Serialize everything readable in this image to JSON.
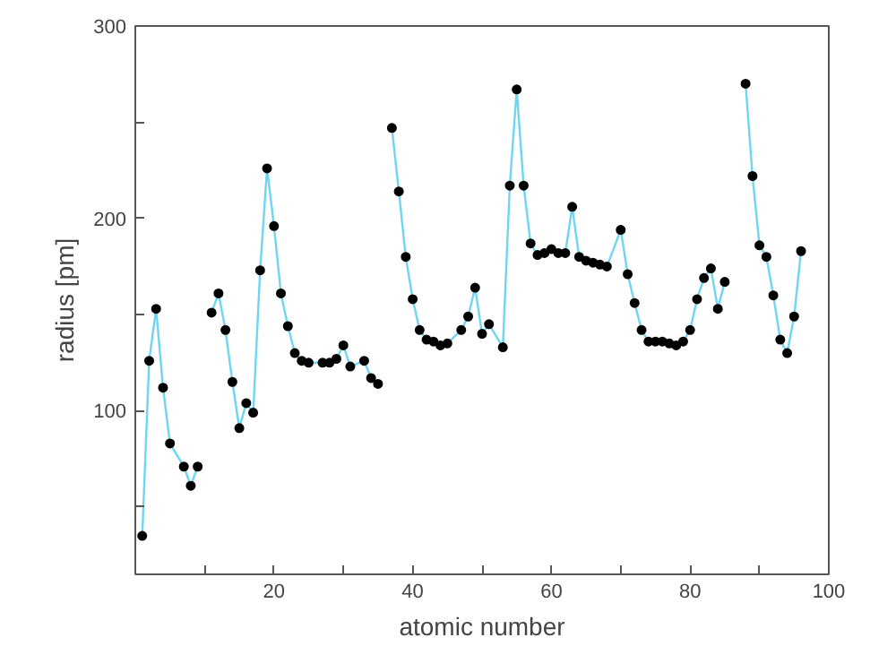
{
  "chart_data": {
    "type": "line",
    "xlabel": "atomic number",
    "ylabel": "radius [pm]",
    "x": [
      1,
      2,
      3,
      4,
      5,
      7,
      8,
      9,
      10,
      11,
      12,
      13,
      14,
      15,
      16,
      17,
      18,
      19,
      20,
      21,
      22,
      23,
      24,
      25,
      27,
      28,
      29,
      30,
      31,
      33,
      34,
      35,
      36,
      37,
      38,
      39,
      40,
      41,
      42,
      43,
      44,
      45,
      47,
      48,
      49,
      50,
      51,
      53,
      54,
      55,
      56,
      57,
      58,
      59,
      60,
      61,
      62,
      63,
      64,
      65,
      66,
      67,
      68,
      70,
      71,
      72,
      73,
      74,
      75,
      76,
      77,
      78,
      79,
      80,
      81,
      82,
      83,
      84,
      85,
      86,
      88,
      89,
      90,
      91,
      92,
      93,
      94,
      95,
      96
    ],
    "series": [
      {
        "color": "#6fd6f2",
        "values": [
          35,
          126,
          153,
          112,
          83,
          71,
          61,
          71,
          null,
          151,
          161,
          142,
          115,
          91,
          104,
          99,
          173,
          226,
          196,
          161,
          144,
          130,
          126,
          125,
          125,
          125,
          127,
          134,
          123,
          126,
          117,
          114,
          null,
          247,
          214,
          180,
          158,
          142,
          137,
          136,
          134,
          135,
          142,
          149,
          164,
          140,
          145,
          133,
          217,
          267,
          217,
          187,
          181,
          182,
          184,
          182,
          182,
          206,
          180,
          178,
          177,
          176,
          175,
          194,
          171,
          156,
          142,
          136,
          136,
          136,
          135,
          134,
          136,
          142,
          158,
          169,
          174,
          153,
          167,
          null,
          270,
          222,
          186,
          180,
          160,
          137,
          130,
          149,
          183
        ]
      }
    ],
    "xlim": [
      0,
      100
    ],
    "ylim": [
      15,
      300
    ],
    "xticks": [
      {
        "value": 10,
        "label": null
      },
      20,
      {
        "value": 30,
        "label": null
      },
      40,
      {
        "value": 50,
        "label": null
      },
      60,
      {
        "value": 70,
        "label": null
      },
      80,
      {
        "value": 90,
        "label": null
      },
      100
    ],
    "yticks": [
      {
        "value": 50,
        "label": null
      },
      100,
      {
        "value": 150,
        "label": null
      },
      200,
      {
        "value": 250,
        "label": null
      },
      300
    ],
    "grid": false,
    "marker": "circle",
    "line_style": "solid"
  }
}
